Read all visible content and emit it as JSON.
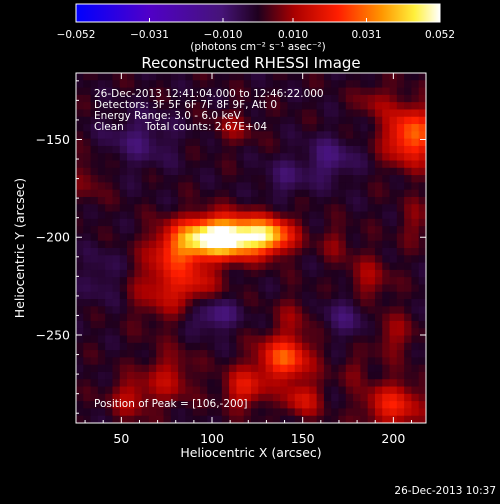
{
  "chart_data": {
    "type": "heatmap",
    "title": "Reconstructed RHESSI Image",
    "xlabel": "Heliocentric X (arcsec)",
    "ylabel": "Heliocentric Y (arcsec)",
    "xlim": [
      25,
      218
    ],
    "ylim": [
      -295,
      -116
    ],
    "x_ticks": [
      50,
      100,
      150,
      200
    ],
    "y_ticks": [
      -150,
      -200,
      -250
    ],
    "colorbar": {
      "min": -0.052,
      "max": 0.052,
      "tick_values": [
        -0.052,
        -0.031,
        -0.01,
        0.01,
        0.031,
        0.052
      ],
      "tick_labels": [
        "−0.052",
        "−0.031",
        "−0.010",
        "0.010",
        "0.031",
        "0.052"
      ],
      "unit_label": "(photons cm⁻² s⁻¹ asec⁻²)"
    },
    "annotations": {
      "time_range": "26-Dec-2013 12:41:04.000 to 12:46:22.000",
      "detectors": "Detectors: 3F 5F 6F 7F 8F 9F, Att 0",
      "energy_range": "Energy Range: 3.0 - 6.0 keV",
      "method": "Clean",
      "total_counts": "Total counts: 2.67E+04",
      "peak_position": "Position of Peak = [106,-200]"
    },
    "peak": {
      "x": 106,
      "y": -200,
      "value": 0.052
    },
    "blobs": [
      {
        "x": 106,
        "y": -200,
        "sx": 16,
        "sy": 7,
        "amp": 0.062
      },
      {
        "x": 132,
        "y": -199,
        "sx": 9,
        "sy": 6,
        "amp": 0.03
      },
      {
        "x": 82,
        "y": -207,
        "sx": 10,
        "sy": 8,
        "amp": 0.016
      },
      {
        "x": 75,
        "y": -225,
        "sx": 13,
        "sy": 12,
        "amp": 0.014
      },
      {
        "x": 92,
        "y": -224,
        "sx": 9,
        "sy": 6,
        "amp": 0.01
      },
      {
        "x": 210,
        "y": -148,
        "sx": 10,
        "sy": 10,
        "amp": 0.03
      },
      {
        "x": 190,
        "y": -130,
        "sx": 7,
        "sy": 6,
        "amp": 0.008
      },
      {
        "x": 186,
        "y": -222,
        "sx": 8,
        "sy": 9,
        "amp": 0.01
      },
      {
        "x": 200,
        "y": -250,
        "sx": 8,
        "sy": 8,
        "amp": 0.009
      },
      {
        "x": 145,
        "y": -240,
        "sx": 7,
        "sy": 7,
        "amp": 0.007
      },
      {
        "x": 140,
        "y": -262,
        "sx": 10,
        "sy": 8,
        "amp": 0.028
      },
      {
        "x": 118,
        "y": -277,
        "sx": 8,
        "sy": 7,
        "amp": 0.018
      },
      {
        "x": 150,
        "y": -283,
        "sx": 7,
        "sy": 6,
        "amp": 0.016
      },
      {
        "x": 76,
        "y": -272,
        "sx": 9,
        "sy": 9,
        "amp": 0.012
      },
      {
        "x": 55,
        "y": -282,
        "sx": 8,
        "sy": 7,
        "amp": 0.012
      },
      {
        "x": 200,
        "y": -286,
        "sx": 11,
        "sy": 8,
        "amp": 0.02
      },
      {
        "x": 178,
        "y": -268,
        "sx": 6,
        "sy": 5,
        "amp": 0.006
      },
      {
        "x": 168,
        "y": -203,
        "sx": 6,
        "sy": 6,
        "amp": 0.007
      },
      {
        "x": 212,
        "y": -192,
        "sx": 6,
        "sy": 8,
        "amp": 0.007
      },
      {
        "x": 112,
        "y": -144,
        "sx": 8,
        "sy": 6,
        "amp": 0.008
      },
      {
        "x": 32,
        "y": -170,
        "sx": 7,
        "sy": 9,
        "amp": 0.006
      },
      {
        "x": 165,
        "y": -160,
        "sx": 10,
        "sy": 8,
        "amp": -0.01
      },
      {
        "x": 60,
        "y": -150,
        "sx": 14,
        "sy": 10,
        "amp": -0.008
      },
      {
        "x": 100,
        "y": -240,
        "sx": 10,
        "sy": 6,
        "amp": -0.012
      },
      {
        "x": 175,
        "y": -240,
        "sx": 10,
        "sy": 8,
        "amp": -0.008
      },
      {
        "x": 140,
        "y": -170,
        "sx": 9,
        "sy": 7,
        "amp": -0.007
      },
      {
        "x": 40,
        "y": -220,
        "sx": 8,
        "sy": 10,
        "amp": -0.006
      }
    ]
  },
  "footer": {
    "timestamp": "26-Dec-2013 10:37"
  }
}
